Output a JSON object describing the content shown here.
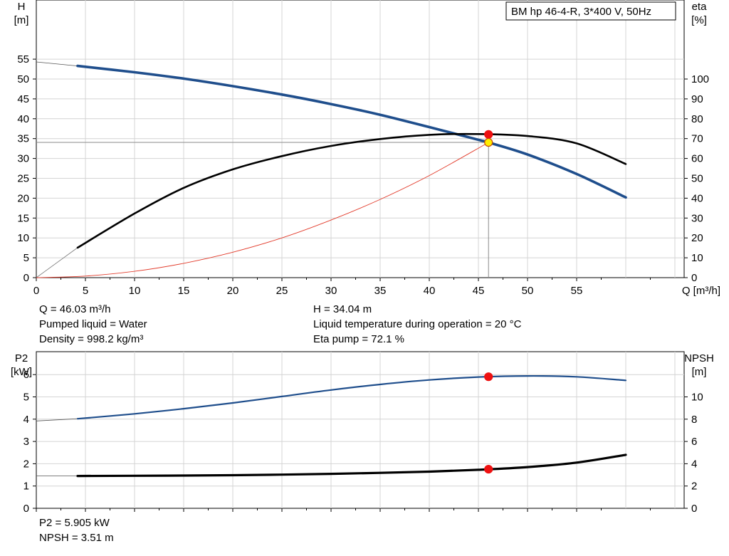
{
  "title": "BM hp 46-4-R, 3*400 V, 50Hz",
  "top_info": {
    "left": [
      "Q = 46.03 m³/h",
      "Pumped liquid = Water",
      "Density = 998.2 kg/m³"
    ],
    "right": [
      "H = 34.04 m",
      "Liquid temperature during operation = 20 °C",
      "Eta pump = 72.1 %"
    ]
  },
  "bottom_info": [
    "P2 = 5.905 kW",
    "NPSH = 3.51 m"
  ],
  "colors": {
    "head": "#1f4e8c",
    "eta": "#000000",
    "system": "#e23a2a",
    "power": "#1f4e8c",
    "npsh": "#000000",
    "marker": "#ee1111",
    "marker_yellow": "#ffee00",
    "grid": "#d4d4d4"
  },
  "chart_data": [
    {
      "type": "line",
      "grid": true,
      "x_axis": {
        "label": "Q [m³/h]",
        "range": [
          0,
          65
        ],
        "ticks": [
          0,
          5,
          10,
          15,
          20,
          25,
          30,
          35,
          40,
          45,
          50,
          55
        ]
      },
      "left_axis": {
        "label": [
          "H",
          "[m]"
        ],
        "range": [
          0,
          61
        ],
        "ticks": [
          0,
          5,
          10,
          15,
          20,
          25,
          30,
          35,
          40,
          45,
          50,
          55
        ]
      },
      "right_axis": {
        "label": [
          "eta",
          "[%]"
        ],
        "range": [
          0,
          122
        ],
        "ticks": [
          0,
          10,
          20,
          30,
          40,
          50,
          60,
          70,
          80,
          90,
          100
        ]
      },
      "series": [
        {
          "axis": "left",
          "style": "head",
          "x": [
            0,
            4.2,
            10,
            15,
            20,
            25,
            30,
            35,
            40,
            45,
            46.03,
            50,
            55,
            60
          ],
          "y": [
            54.3,
            53.3,
            51.7,
            50.1,
            48.2,
            46.1,
            43.7,
            41.0,
            37.9,
            34.7,
            34.04,
            31.0,
            26.1,
            20.2
          ],
          "thin_segment_end": 4.2
        },
        {
          "axis": "right",
          "style": "eta",
          "x": [
            0,
            4.2,
            10,
            15,
            20,
            25,
            30,
            35,
            40,
            45,
            50,
            55,
            60
          ],
          "y": [
            0,
            15.1,
            32.3,
            45.2,
            54.5,
            61.2,
            66.3,
            69.8,
            71.9,
            72.3,
            71.3,
            67.6,
            57.2
          ],
          "thin_segment_end": 4.2
        },
        {
          "axis": "left",
          "style": "system",
          "x": [
            0,
            5,
            10,
            15,
            20,
            25,
            30,
            35,
            40,
            46.03
          ],
          "y": [
            0,
            0.4,
            1.6,
            3.6,
            6.4,
            10.0,
            14.5,
            19.7,
            25.7,
            34.04
          ]
        }
      ],
      "operating_point": {
        "q": 46.03,
        "h": 34.04,
        "eta": 72.1
      },
      "points": [
        {
          "axis": "right",
          "x": 46.03,
          "y": 72.1,
          "style": "marker"
        },
        {
          "axis": "left",
          "x": 46.03,
          "y": 34.04,
          "style": "marker_yellow"
        }
      ]
    },
    {
      "type": "line",
      "grid": true,
      "x_axis": {
        "range": [
          0,
          65
        ],
        "ticks": [
          0,
          5,
          10,
          15,
          20,
          25,
          30,
          35,
          40,
          45,
          50,
          55
        ]
      },
      "left_axis": {
        "label": [
          "P2",
          "[kW]"
        ],
        "range": [
          0,
          6.3
        ],
        "ticks": [
          0,
          1,
          2,
          3,
          4,
          5,
          6
        ]
      },
      "right_axis": {
        "label": [
          "NPSH",
          "[m]"
        ],
        "range": [
          0,
          12.6
        ],
        "ticks": [
          0,
          2,
          4,
          6,
          8,
          10
        ]
      },
      "series": [
        {
          "axis": "left",
          "style": "power",
          "x": [
            0,
            4.2,
            10,
            15,
            20,
            25,
            30,
            35,
            40,
            45,
            50,
            55,
            60
          ],
          "y": [
            3.92,
            4.02,
            4.24,
            4.47,
            4.73,
            5.02,
            5.31,
            5.56,
            5.76,
            5.89,
            5.94,
            5.9,
            5.74
          ],
          "thin_segment_end": 4.2
        },
        {
          "axis": "right",
          "style": "npsh",
          "x": [
            0,
            4.2,
            10,
            15,
            20,
            25,
            30,
            35,
            40,
            45,
            50,
            55,
            60
          ],
          "y": [
            2.9,
            2.9,
            2.92,
            2.94,
            2.97,
            3.02,
            3.09,
            3.18,
            3.29,
            3.46,
            3.7,
            4.1,
            4.8
          ],
          "thin_segment_end": 4.2
        }
      ],
      "points": [
        {
          "axis": "left",
          "x": 46.03,
          "y": 5.905,
          "style": "marker"
        },
        {
          "axis": "right",
          "x": 46.03,
          "y": 3.51,
          "style": "marker"
        }
      ]
    }
  ]
}
